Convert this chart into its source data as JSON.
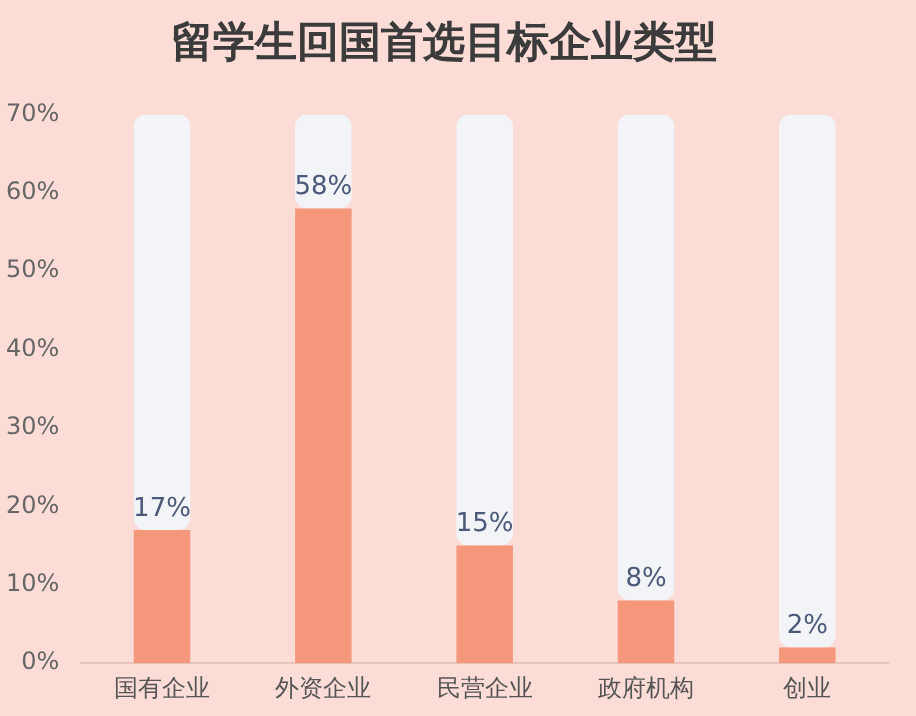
{
  "chart_data": {
    "type": "bar",
    "title": "留学生回国首选目标企业类型",
    "categories": [
      "国有企业",
      "外资企业",
      "民营企业",
      "政府机构",
      "创业"
    ],
    "series": [
      {
        "color": "#f4977a",
        "values": [
          17,
          58,
          15,
          8,
          2
        ],
        "value_labels": [
          "17%",
          "58%",
          "15%",
          "8%",
          "2%"
        ]
      },
      {
        "color": "#f3f4f7",
        "values": [
          53,
          12,
          55,
          62,
          68
        ]
      }
    ],
    "stacked": true,
    "ylim": [
      0,
      70
    ],
    "yticks": [
      {
        "value": 0,
        "label": "0%"
      },
      {
        "value": 10,
        "label": "10%"
      },
      {
        "value": 20,
        "label": "20%"
      },
      {
        "value": 30,
        "label": "30%"
      },
      {
        "value": 40,
        "label": "40%"
      },
      {
        "value": 50,
        "label": "50%"
      },
      {
        "value": 60,
        "label": "60%"
      },
      {
        "value": 70,
        "label": "70%"
      }
    ],
    "grid": false,
    "legend": false
  }
}
